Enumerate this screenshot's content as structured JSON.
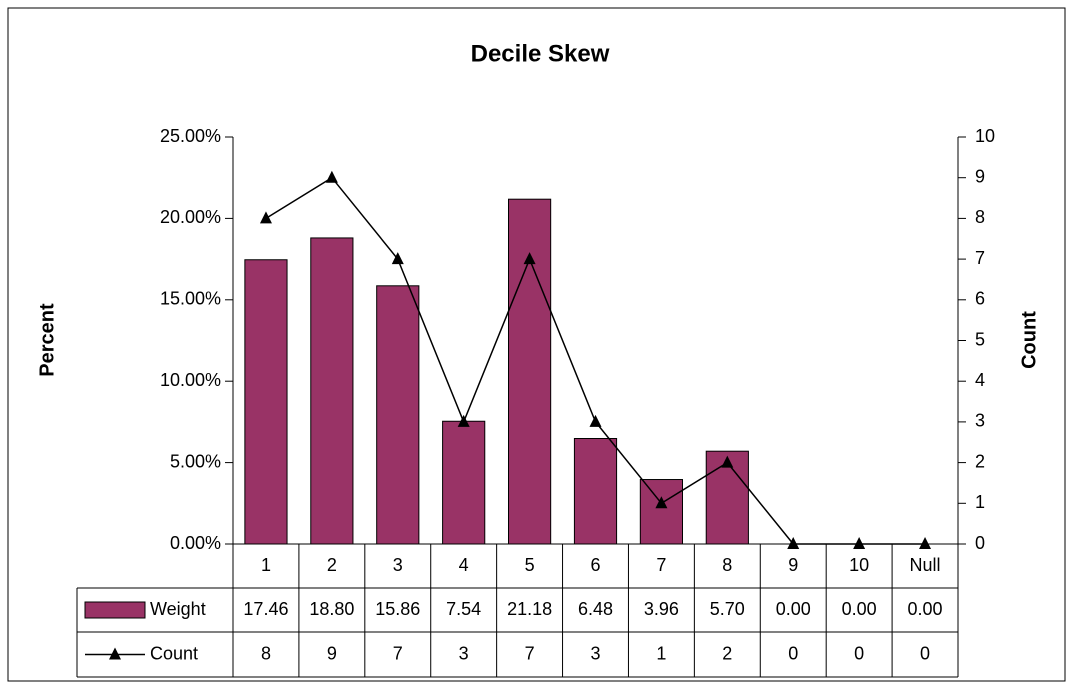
{
  "chart_data": {
    "type": "bar",
    "title": "Decile Skew",
    "y_label": "Percent",
    "y2_label": "Count",
    "categories": [
      "1",
      "2",
      "3",
      "4",
      "5",
      "6",
      "7",
      "8",
      "9",
      "10",
      "Null"
    ],
    "series": [
      {
        "name": "Weight",
        "type": "bar",
        "color": "#993366",
        "values": [
          17.46,
          18.8,
          15.86,
          7.54,
          21.18,
          6.48,
          3.96,
          5.7,
          0,
          0,
          0
        ],
        "value_labels": [
          "17.46",
          "18.80",
          "15.86",
          "7.54",
          "21.18",
          "6.48",
          "3.96",
          "5.70",
          "0.00",
          "0.00",
          "0.00"
        ]
      },
      {
        "name": "Count",
        "type": "line",
        "axis": "y2",
        "color": "#000000",
        "values": [
          8,
          9,
          7,
          3,
          7,
          3,
          1,
          2,
          0,
          0,
          0
        ]
      }
    ],
    "ylim": [
      0,
      25
    ],
    "yticks": [
      {
        "value": 0,
        "label": "0.00%"
      },
      {
        "value": 5,
        "label": "5.00%"
      },
      {
        "value": 10,
        "label": "10.00%"
      },
      {
        "value": 15,
        "label": "15.00%"
      },
      {
        "value": 20,
        "label": "20.00%"
      },
      {
        "value": 25,
        "label": "25.00%"
      }
    ],
    "y2lim": [
      0,
      10
    ],
    "y2ticks": [
      0,
      1,
      2,
      3,
      4,
      5,
      6,
      7,
      8,
      9,
      10
    ],
    "grid": false
  }
}
